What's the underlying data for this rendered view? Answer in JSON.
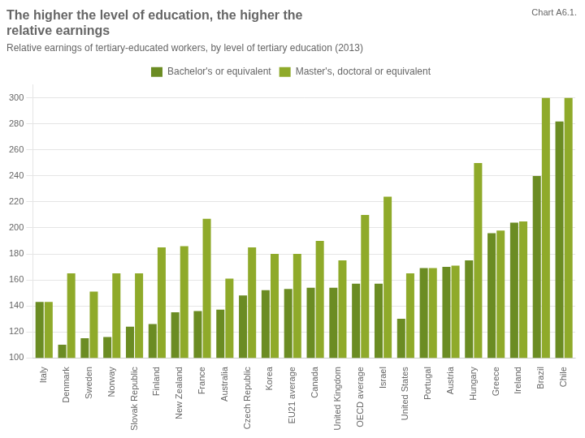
{
  "chart_data": {
    "type": "bar",
    "title": "The higher the level of education, the higher the\nrelative earnings",
    "subtitle": "Relative earnings of tertiary-educated workers, by level of tertiary education (2013)",
    "annotations": [
      "Chart A6.1."
    ],
    "categories": [
      "Italy",
      "Denmark",
      "Sweden",
      "Norway",
      "Slovak Republic",
      "Finland",
      "New Zealand",
      "France",
      "Australia",
      "Czech Republic",
      "Korea",
      "EU21 average",
      "Canada",
      "United Kingdom",
      "OECD average",
      "Israel",
      "United States",
      "Portugal",
      "Austria",
      "Hungary",
      "Greece",
      "Ireland",
      "Brazil",
      "Chile"
    ],
    "series": [
      {
        "name": "Bachelor's or equivalent",
        "color": "#6b8c23",
        "values": [
          143,
          110,
          115,
          116,
          124,
          126,
          135,
          136,
          137,
          148,
          152,
          153,
          154,
          154,
          157,
          157,
          130,
          169,
          170,
          175,
          196,
          204,
          240,
          282
        ]
      },
      {
        "name": "Master's, doctoral or equivalent",
        "color": "#8faa2a",
        "values": [
          143,
          165,
          151,
          165,
          165,
          185,
          186,
          207,
          161,
          185,
          180,
          180,
          190,
          175,
          210,
          224,
          165,
          169,
          171,
          250,
          198,
          205,
          300,
          300
        ]
      }
    ],
    "ylim": [
      100,
      310
    ],
    "yticks": [
      100,
      120,
      140,
      160,
      180,
      200,
      220,
      240,
      260,
      280,
      300
    ],
    "grid": true,
    "legend": "top"
  }
}
